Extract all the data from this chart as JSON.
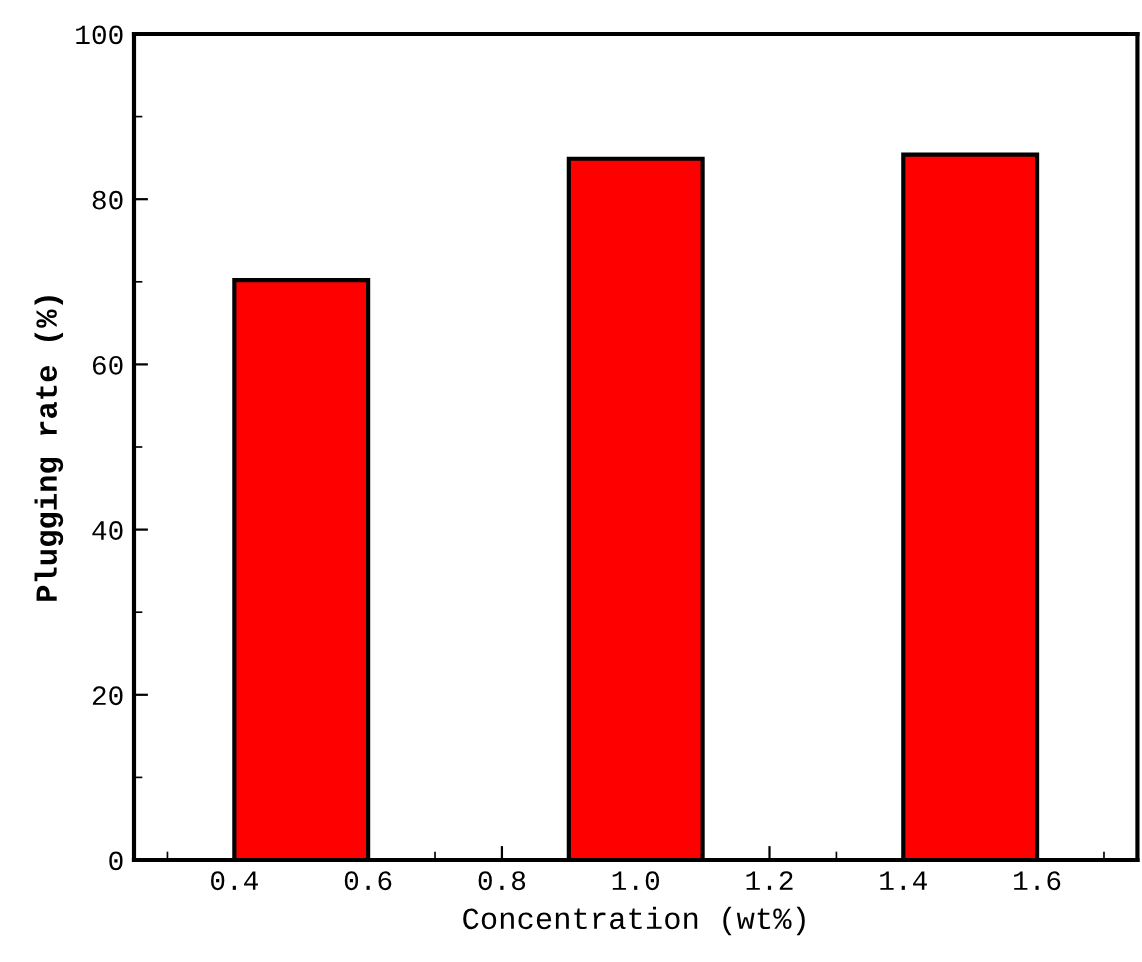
{
  "chart_data": {
    "type": "bar",
    "xlabel": "Concentration (wt%)",
    "ylabel": "Plugging rate (%)",
    "x": [
      0.5,
      1.0,
      1.5
    ],
    "values": [
      70.2,
      84.9,
      85.4
    ],
    "color": "#ff0000",
    "xlim": [
      0.25,
      1.75
    ],
    "xticks": [
      0.4,
      0.6,
      0.8,
      {
        "value": 1,
        "label": "1.0"
      },
      1.2,
      1.4,
      1.6
    ],
    "ylim": [
      0,
      100
    ],
    "yticks": [
      0,
      20,
      40,
      60,
      80,
      100
    ],
    "grid": false,
    "legend": false
  }
}
